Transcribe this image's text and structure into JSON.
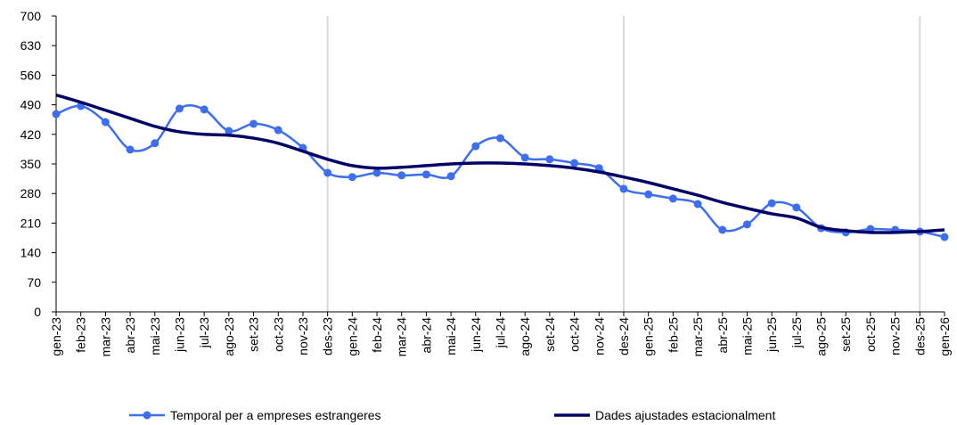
{
  "chart_data": {
    "type": "line",
    "categories": [
      "gen-23",
      "feb-23",
      "mar-23",
      "abr-23",
      "mai-23",
      "jun-23",
      "jul-23",
      "ago-23",
      "set-23",
      "oct-23",
      "nov-23",
      "des-23",
      "gen-24",
      "feb-24",
      "mar-24",
      "abr-24",
      "mai-24",
      "jun-24",
      "jul-24",
      "ago-24",
      "set-24",
      "oct-24",
      "nov-24",
      "des-24",
      "gen-25",
      "feb-25",
      "mar-25",
      "abr-25",
      "mai-25",
      "jun-25",
      "jul-25",
      "ago-25",
      "set-25",
      "oct-25",
      "nov-25",
      "des-25",
      "gen-26"
    ],
    "series": [
      {
        "name": "Temporal per a empreses estrangeres",
        "color": "#3d6ef0",
        "markers": true,
        "values": [
          468,
          487,
          449,
          384,
          399,
          481,
          479,
          428,
          445,
          430,
          388,
          329,
          319,
          329,
          323,
          325,
          321,
          392,
          411,
          365,
          361,
          352,
          340,
          291,
          278,
          268,
          255,
          194,
          207,
          257,
          247,
          198,
          188,
          196,
          194,
          190,
          177
        ]
      },
      {
        "name": "Dades ajustades estacionalment",
        "color": "#000066",
        "markers": false,
        "values": [
          513,
          496,
          477,
          458,
          439,
          426,
          420,
          418,
          411,
          399,
          380,
          361,
          346,
          340,
          342,
          346,
          350,
          352,
          352,
          350,
          346,
          340,
          331,
          319,
          306,
          291,
          276,
          259,
          245,
          232,
          222,
          200,
          192,
          188,
          188,
          190,
          194
        ]
      }
    ],
    "ylim": [
      0,
      700
    ],
    "yticks": [
      0,
      70,
      140,
      210,
      280,
      350,
      420,
      490,
      560,
      630,
      700
    ],
    "vertical_lines": [
      11,
      23,
      35
    ],
    "legend": "bottom"
  }
}
